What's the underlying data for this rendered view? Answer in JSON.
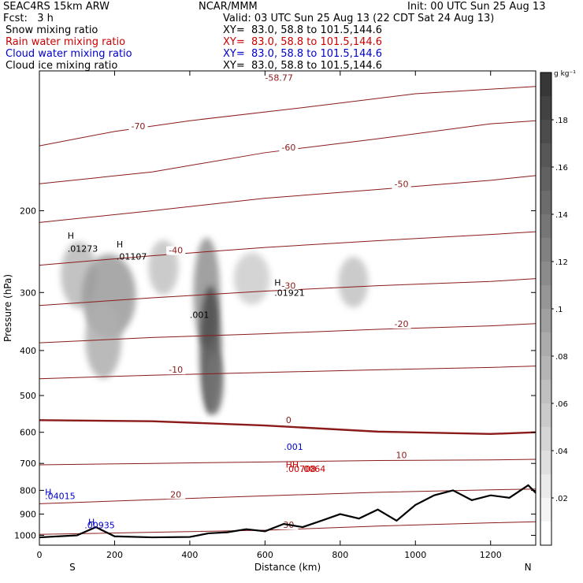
{
  "header": {
    "model": "SEAC4RS 15km ARW",
    "org": "NCAR/MMM",
    "init": "Init: 00 UTC Sun 25 Aug 13",
    "fcst": "Fcst:   3 h",
    "valid": "Valid: 03 UTC Sun 25 Aug 13 (22 CDT Sat 24 Aug 13)"
  },
  "colors": {
    "snow": "#000000",
    "rain": "#cc0000",
    "cloud_water": "#0000cc",
    "cloud_ice": "#000000",
    "temperature": "#8b1a1a",
    "terrain": "#000000"
  },
  "legend_rows": [
    {
      "field": "Snow mixing ratio",
      "xy": "XY=  83.0, 58.8 to 101.5,144.6",
      "color": "#000000"
    },
    {
      "field": "Rain water mixing ratio",
      "xy": "XY=  83.0, 58.8 to 101.5,144.6",
      "color": "#cc0000"
    },
    {
      "field": "Cloud water mixing ratio",
      "xy": "XY=  83.0, 58.8 to 101.5,144.6",
      "color": "#0000cc"
    },
    {
      "field": "Cloud ice mixing ratio",
      "xy": "XY=  83.0, 58.8 to 101.5,144.6",
      "color": "#000000"
    }
  ],
  "chart_data": {
    "type": "heatmap",
    "xlabel": "Distance (km)",
    "ylabel": "Pressure (hPa)",
    "xlim": [
      0,
      1320
    ],
    "ylim": [
      100,
      1050
    ],
    "y_log": true,
    "x_ticks": [
      0,
      200,
      400,
      600,
      800,
      1000,
      1200
    ],
    "y_ticks": [
      200,
      300,
      400,
      500,
      600,
      700,
      800,
      900,
      1000
    ],
    "x_end_labels": {
      "left": "S",
      "right": "N"
    },
    "colorbar": {
      "unit": "g kg⁻¹",
      "ticks": [
        0.02,
        0.04,
        0.06,
        0.08,
        0.1,
        0.12,
        0.14,
        0.16,
        0.18
      ],
      "tick_labels": [
        ".02",
        ".04",
        ".06",
        ".08",
        ".1",
        ".12",
        ".14",
        ".16",
        ".18"
      ],
      "range": [
        0,
        0.2
      ]
    },
    "snow_blobs": [
      {
        "x": 105,
        "p": 275,
        "sx": 30,
        "p_sd": 25,
        "q": 0.07
      },
      {
        "x": 185,
        "p": 305,
        "sx": 45,
        "p_sd": 35,
        "q": 0.1
      },
      {
        "x": 170,
        "p": 380,
        "sx": 30,
        "p_sd": 40,
        "q": 0.08
      },
      {
        "x": 330,
        "p": 265,
        "sx": 25,
        "p_sd": 20,
        "q": 0.06
      },
      {
        "x": 445,
        "p": 300,
        "sx": 22,
        "p_sd": 45,
        "q": 0.11
      },
      {
        "x": 455,
        "p": 400,
        "sx": 18,
        "p_sd": 70,
        "q": 0.18
      },
      {
        "x": 465,
        "p": 470,
        "sx": 15,
        "p_sd": 40,
        "q": 0.14
      },
      {
        "x": 565,
        "p": 280,
        "sx": 30,
        "p_sd": 20,
        "q": 0.05
      },
      {
        "x": 835,
        "p": 285,
        "sx": 25,
        "p_sd": 20,
        "q": 0.06
      }
    ],
    "temperature_isotherms": [
      {
        "label": "-70",
        "points": [
          [
            0,
            145
          ],
          [
            200,
            135
          ],
          [
            400,
            128
          ],
          [
            700,
            120
          ],
          [
            1000,
            112
          ],
          [
            1320,
            108
          ]
        ]
      },
      {
        "label": "-60",
        "points": [
          [
            0,
            175
          ],
          [
            300,
            165
          ],
          [
            600,
            150
          ],
          [
            900,
            140
          ],
          [
            1200,
            130
          ],
          [
            1320,
            128
          ]
        ]
      },
      {
        "label": "-50",
        "points": [
          [
            0,
            212
          ],
          [
            300,
            200
          ],
          [
            600,
            188
          ],
          [
            900,
            180
          ],
          [
            1200,
            172
          ],
          [
            1320,
            168
          ]
        ]
      },
      {
        "label": "-40",
        "points": [
          [
            0,
            262
          ],
          [
            300,
            250
          ],
          [
            600,
            240
          ],
          [
            900,
            232
          ],
          [
            1200,
            225
          ],
          [
            1320,
            222
          ]
        ]
      },
      {
        "label": "-30",
        "points": [
          [
            0,
            320
          ],
          [
            300,
            308
          ],
          [
            600,
            298
          ],
          [
            900,
            290
          ],
          [
            1200,
            284
          ],
          [
            1320,
            280
          ]
        ]
      },
      {
        "label": "-20",
        "points": [
          [
            0,
            385
          ],
          [
            300,
            375
          ],
          [
            600,
            368
          ],
          [
            900,
            360
          ],
          [
            1200,
            354
          ],
          [
            1320,
            350
          ]
        ]
      },
      {
        "label": "-10",
        "points": [
          [
            0,
            460
          ],
          [
            300,
            452
          ],
          [
            600,
            446
          ],
          [
            900,
            440
          ],
          [
            1200,
            435
          ],
          [
            1320,
            432
          ]
        ]
      },
      {
        "label": "0",
        "points": [
          [
            0,
            565
          ],
          [
            300,
            568
          ],
          [
            600,
            580
          ],
          [
            900,
            598
          ],
          [
            1200,
            605
          ],
          [
            1320,
            600
          ]
        ]
      },
      {
        "label": "10",
        "points": [
          [
            0,
            705
          ],
          [
            300,
            700
          ],
          [
            600,
            695
          ],
          [
            900,
            690
          ],
          [
            1200,
            688
          ],
          [
            1320,
            686
          ]
        ]
      },
      {
        "label": "20",
        "points": [
          [
            0,
            855
          ],
          [
            300,
            838
          ],
          [
            600,
            822
          ],
          [
            900,
            808
          ],
          [
            1200,
            798
          ],
          [
            1320,
            795
          ]
        ]
      },
      {
        "label": "30",
        "points": [
          [
            0,
            995
          ],
          [
            300,
            985
          ],
          [
            600,
            975
          ],
          [
            900,
            955
          ],
          [
            1200,
            940
          ],
          [
            1320,
            935
          ]
        ]
      }
    ],
    "labeled_values": {
      "snow_maxima": [
        ".01273",
        ".01107",
        ".01921"
      ],
      "ice_contour": [
        ".001"
      ],
      "cloud_water_maxima": [
        ".04015",
        ".00935",
        ".001"
      ],
      "rain_max": ".00708",
      "rain_max_overlap": ".0064",
      "top_label": "-58.77"
    },
    "markers": [
      {
        "label": "H",
        "x": 75,
        "p": 230,
        "color": "#000000"
      },
      {
        "label": "H",
        "x": 205,
        "p": 240,
        "color": "#000000"
      },
      {
        "label": "H",
        "x": 625,
        "p": 290,
        "color": "#000000"
      },
      {
        "label": "HH",
        "x": 655,
        "p": 715,
        "color": "#cc0000"
      },
      {
        "label": "H",
        "x": 15,
        "p": 820,
        "color": "#0000cc"
      },
      {
        "label": "H",
        "x": 130,
        "p": 950,
        "color": "#0000cc"
      }
    ],
    "terrain_surface_hpa": [
      [
        0,
        1010
      ],
      [
        100,
        1000
      ],
      [
        150,
        960
      ],
      [
        200,
        1005
      ],
      [
        300,
        1010
      ],
      [
        400,
        1008
      ],
      [
        450,
        990
      ],
      [
        500,
        985
      ],
      [
        550,
        970
      ],
      [
        600,
        980
      ],
      [
        650,
        945
      ],
      [
        700,
        960
      ],
      [
        750,
        930
      ],
      [
        800,
        900
      ],
      [
        850,
        920
      ],
      [
        900,
        880
      ],
      [
        950,
        930
      ],
      [
        1000,
        860
      ],
      [
        1050,
        820
      ],
      [
        1100,
        800
      ],
      [
        1150,
        840
      ],
      [
        1200,
        820
      ],
      [
        1250,
        830
      ],
      [
        1300,
        780
      ],
      [
        1320,
        810
      ]
    ]
  }
}
